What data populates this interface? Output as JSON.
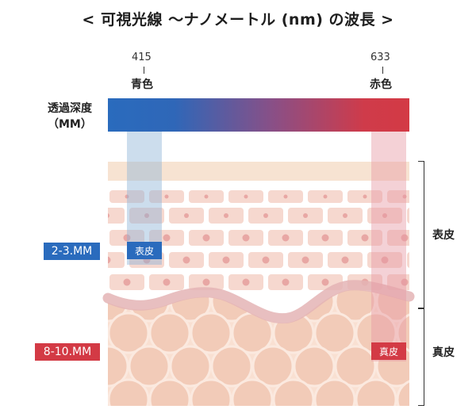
{
  "title": "< 可視光線 ～ナノメートル (nm) の波長 >",
  "wavelength_markers": [
    {
      "value": "415",
      "label": "青色",
      "color": "#2a6bbd"
    },
    {
      "value": "633",
      "label": "赤色",
      "color": "#d33a45"
    }
  ],
  "depth_label": [
    "透過深度",
    "（MM）"
  ],
  "gradient": {
    "start_color": "#2a6bbd",
    "end_color": "#d33a45"
  },
  "skin": {
    "cell_fill": "#f6d8cf",
    "cell_nucleus": "#e8a7a4",
    "dermis_fill": "#f9e0d2",
    "dermis_shade": "#f2cbb8",
    "wave_color": "#e7bcbc"
  },
  "depth_badges": [
    {
      "text": "2-3.MM",
      "color": "#2a6bbd"
    },
    {
      "text": "8-10.MM",
      "color": "#d33a45"
    }
  ],
  "beam_badges": [
    {
      "text": "表皮",
      "color": "#2a6bbd"
    },
    {
      "text": "真皮",
      "color": "#d33a45"
    }
  ],
  "layers": [
    {
      "label": "表皮"
    },
    {
      "label": "真皮"
    }
  ]
}
